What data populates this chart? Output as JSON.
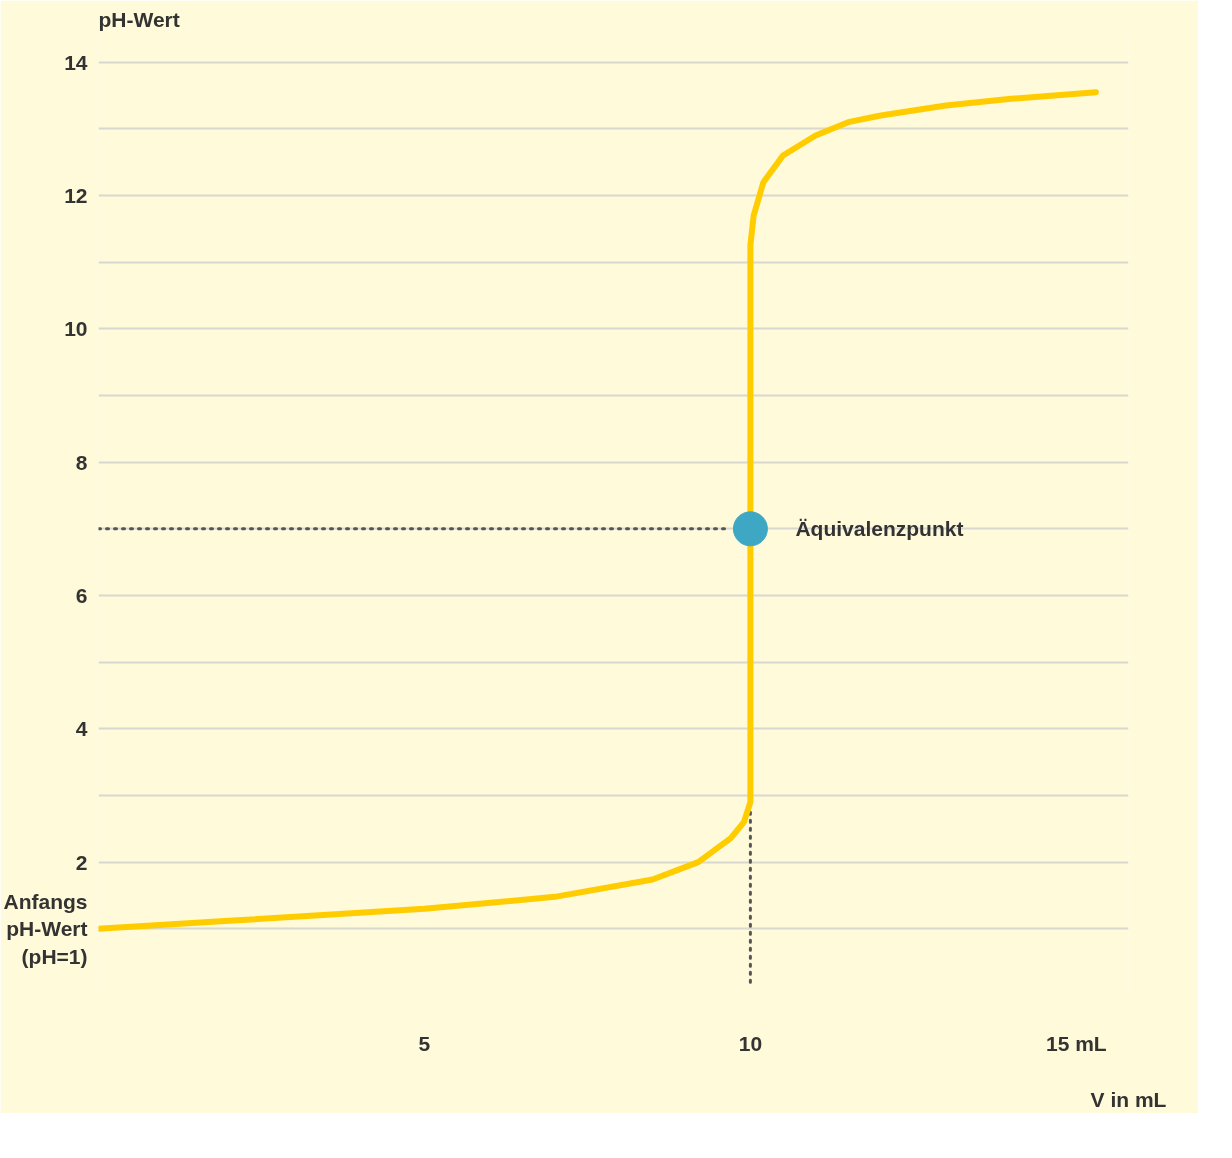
{
  "chart_data": {
    "type": "line",
    "xlabel": "V in mL",
    "ylabel": "pH-Wert",
    "xlim": [
      0,
      15.8
    ],
    "ylim": [
      0,
      14.4
    ],
    "xticks": [
      5,
      10,
      {
        "value": 15,
        "label": "15 mL"
      }
    ],
    "yticks": [
      {
        "value": 0,
        "label": null
      },
      {
        "value": 1,
        "label": "Anfangs\npH-Wert\n(pH=1)"
      },
      2,
      {
        "value": 3,
        "label": null
      },
      4,
      {
        "value": 5,
        "label": null
      },
      6,
      {
        "value": 7,
        "label": null
      },
      8,
      {
        "value": 9,
        "label": null
      },
      10,
      {
        "value": 11,
        "label": null
      },
      12,
      {
        "value": 13,
        "label": null
      },
      14
    ],
    "grid": "y",
    "series": [
      {
        "color": "#555555",
        "line_style": "dotted",
        "x": [
          0,
          9.65
        ],
        "values": [
          7,
          7
        ]
      },
      {
        "color": "#555555",
        "line_style": "dotted",
        "x": [
          10,
          10
        ],
        "values": [
          0.2,
          2.8
        ]
      },
      {
        "color": "#ffcc00",
        "x": [
          0,
          2,
          5,
          7,
          8.5,
          9.2,
          9.7,
          9.9,
          10,
          10,
          10.05,
          10.2,
          10.5,
          11,
          11.5,
          12,
          13,
          14,
          15.3
        ],
        "values": [
          1.0,
          1.12,
          1.3,
          1.48,
          1.74,
          2.0,
          2.36,
          2.6,
          2.9,
          11.26,
          11.7,
          12.2,
          12.6,
          12.9,
          13.1,
          13.2,
          13.35,
          13.45,
          13.55
        ]
      },
      {
        "type": "scatter",
        "marker": "circle",
        "color": "#3ea8c4",
        "x": [
          10
        ],
        "values": [
          7
        ]
      }
    ],
    "annotations": [
      {
        "text": "Äquivalenzpunkt",
        "x": 10,
        "y": 7
      }
    ]
  }
}
